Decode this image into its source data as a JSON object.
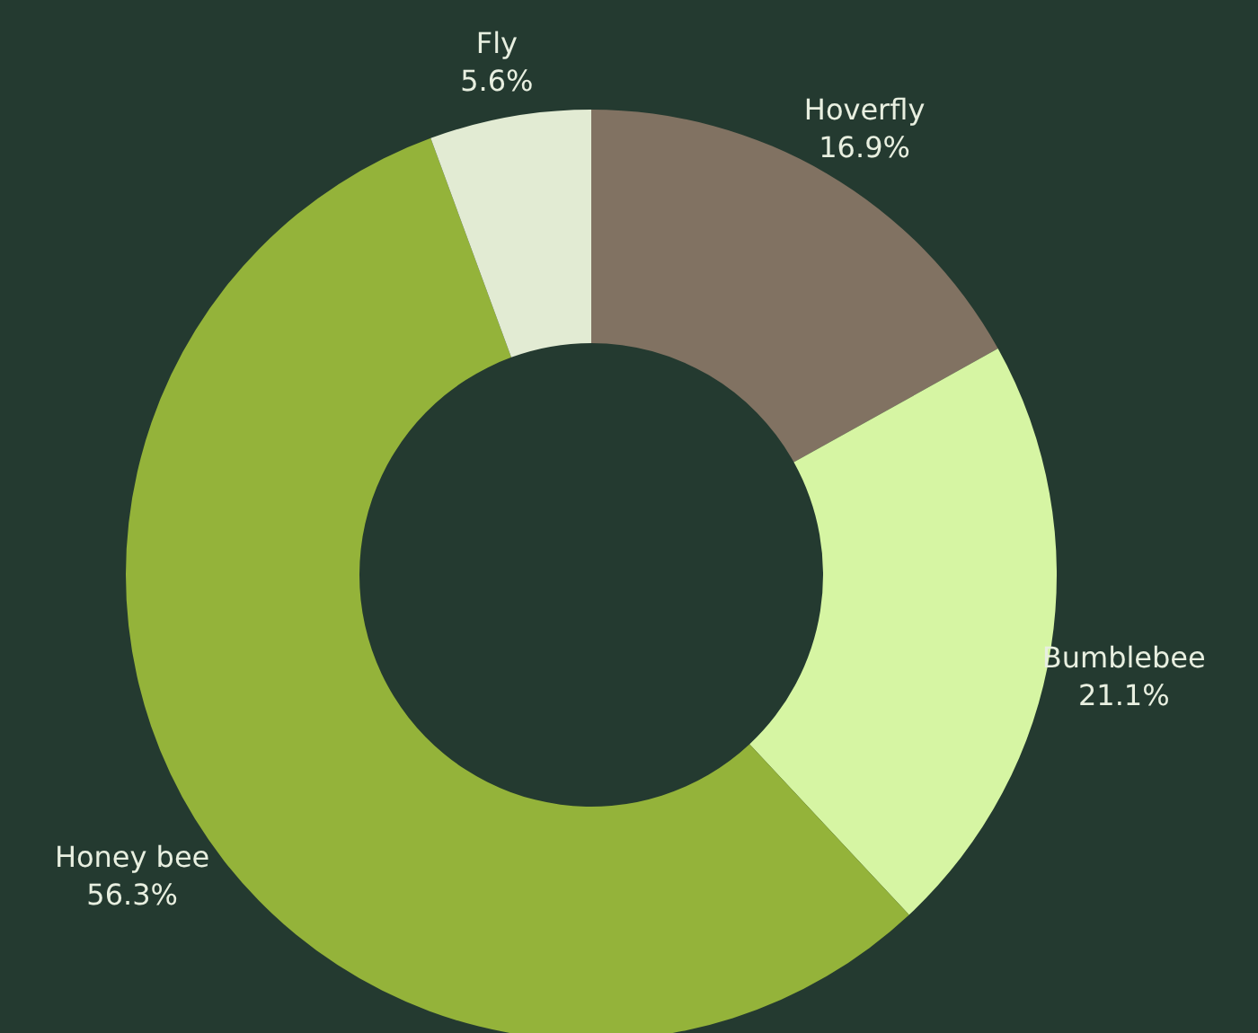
{
  "chart_data": {
    "type": "donut",
    "categories": [
      "Hoverfly",
      "Bumblebee",
      "Honey bee",
      "Fly"
    ],
    "values": [
      16.9,
      21.1,
      56.3,
      5.6
    ],
    "value_labels": [
      "16.9%",
      "21.1%",
      "56.3%",
      "5.6%"
    ],
    "colors": [
      "#817262",
      "#d6f5a3",
      "#94b33a",
      "#e2ebd3"
    ]
  }
}
